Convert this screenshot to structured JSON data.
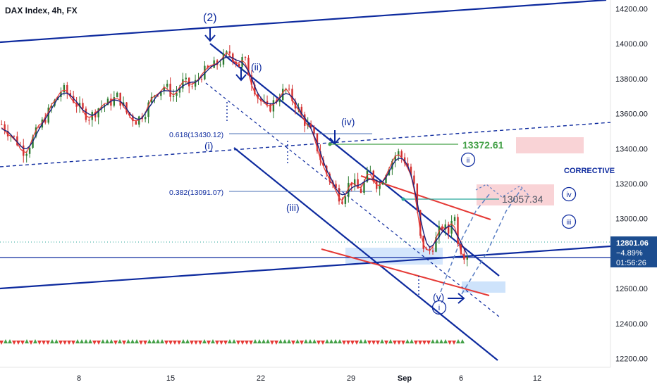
{
  "header": {
    "title": "DAX Index, 4h, FX"
  },
  "colors": {
    "up": "#2e7d32",
    "down": "#d32f2f",
    "blue": "#0d2a9e",
    "red": "#e53935",
    "green": "#43a047",
    "teal": "#26a69a",
    "pink": "#f8c8cc",
    "lightblue": "#c9e0fb",
    "badge": "#1c4d8f"
  },
  "chart_data": {
    "type": "candlestick",
    "symbol": "DAX Index",
    "timeframe": "4h",
    "exchange": "FX",
    "ylim": [
      12150,
      14250
    ],
    "y_ticks": [
      "12200.00",
      "12400.00",
      "12600.00",
      "12800.00",
      "13000.00",
      "13200.00",
      "13400.00",
      "13600.00",
      "13800.00",
      "14000.00",
      "14200.00"
    ],
    "x_ticks": [
      "8",
      "15",
      "22",
      "29",
      "Sep",
      "6",
      "12"
    ],
    "last_price": "12801.06",
    "change": "−4.89%",
    "countdown": "01:56:26",
    "price_path": [
      [
        0,
        13540
      ],
      [
        0.03,
        13450
      ],
      [
        0.05,
        13380
      ],
      [
        0.07,
        13470
      ],
      [
        0.09,
        13560
      ],
      [
        0.11,
        13650
      ],
      [
        0.13,
        13740
      ],
      [
        0.15,
        13700
      ],
      [
        0.17,
        13620
      ],
      [
        0.19,
        13580
      ],
      [
        0.21,
        13640
      ],
      [
        0.23,
        13660
      ],
      [
        0.25,
        13700
      ],
      [
        0.27,
        13600
      ],
      [
        0.29,
        13560
      ],
      [
        0.31,
        13620
      ],
      [
        0.33,
        13720
      ],
      [
        0.35,
        13760
      ],
      [
        0.37,
        13700
      ],
      [
        0.39,
        13780
      ],
      [
        0.41,
        13750
      ],
      [
        0.43,
        13830
      ],
      [
        0.45,
        13860
      ],
      [
        0.47,
        13900
      ],
      [
        0.49,
        13950
      ],
      [
        0.51,
        13880
      ],
      [
        0.52,
        13920
      ],
      [
        0.53,
        13840
      ],
      [
        0.55,
        13700
      ],
      [
        0.57,
        13620
      ],
      [
        0.59,
        13680
      ],
      [
        0.61,
        13740
      ],
      [
        0.63,
        13660
      ],
      [
        0.65,
        13560
      ],
      [
        0.67,
        13470
      ],
      [
        0.69,
        13300
      ],
      [
        0.71,
        13200
      ],
      [
        0.73,
        13110
      ],
      [
        0.75,
        13220
      ],
      [
        0.77,
        13150
      ],
      [
        0.79,
        13270
      ],
      [
        0.81,
        13180
      ],
      [
        0.83,
        13300
      ],
      [
        0.85,
        13380
      ],
      [
        0.87,
        13320
      ],
      [
        0.885,
        13200
      ],
      [
        0.9,
        12870
      ],
      [
        0.915,
        12800
      ],
      [
        0.93,
        12860
      ],
      [
        0.945,
        12960
      ],
      [
        0.96,
        12920
      ],
      [
        0.97,
        13060
      ],
      [
        0.98,
        12880
      ],
      [
        0.99,
        12800
      ],
      [
        1.0,
        12801
      ]
    ],
    "fib_levels": [
      {
        "label": "0.618(13430.12)",
        "value": 13430.12
      },
      {
        "label": "0.382(13091.07)",
        "value": 13091.07
      }
    ],
    "annotations": {
      "wave_2": "(2)",
      "wave_ii": "(ii)",
      "wave_i": "(i)",
      "wave_iii": "(iii)",
      "wave_iv": "(iv)",
      "wave_v": "(v)",
      "circle_i": "i",
      "circle_ii": "ii",
      "circle_iii": "iii",
      "circle_iv": "iv",
      "corrective": "CORRECTIVE",
      "target_1": "13372.61",
      "target_2": "13057.34"
    }
  }
}
